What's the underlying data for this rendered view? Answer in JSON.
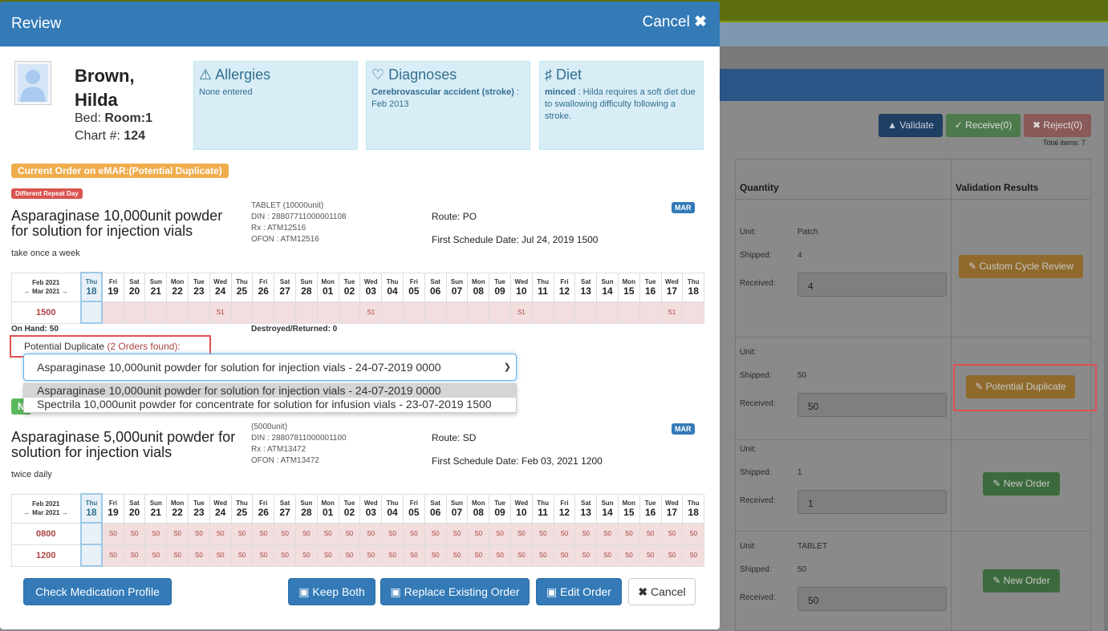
{
  "background": {
    "buttons": {
      "validate": "Validate",
      "receive": "Receive(0)",
      "reject": "Reject(0)"
    },
    "total_items": "Total items: 7",
    "columns": {
      "quantity": "Quantity",
      "validation": "Validation Results"
    },
    "labels": {
      "unit": "Unit:",
      "shipped": "Shipped:",
      "received": "Received:"
    },
    "rows": [
      {
        "unit": "Patch",
        "shipped": "4",
        "received": "4",
        "result": "Custom Cycle Review"
      },
      {
        "unit": "",
        "shipped": "50",
        "received": "50",
        "result": "Potential Duplicate"
      },
      {
        "unit": "",
        "shipped": "1",
        "received": "1",
        "result": "New Order"
      },
      {
        "unit": "TABLET",
        "shipped": "50",
        "received": "50",
        "result": "New Order"
      }
    ]
  },
  "modal": {
    "title": "Review",
    "cancel_label": "Cancel",
    "patient": {
      "name_line1": "Brown,",
      "name_line2": "Hilda",
      "bed_label": "Bed: ",
      "bed_value": "Room:1",
      "chart_label": "Chart #: ",
      "chart_value": "124"
    },
    "allergies": {
      "title": "Allergies",
      "text": "None entered"
    },
    "diagnoses": {
      "title": "Diagnoses",
      "bold": "Cerebrovascular accident (stroke)",
      "text": " : Feb 2013"
    },
    "diet": {
      "title": "Diet",
      "bold": "minced",
      "text": " : Hilda requires a soft diet due to swallowing difficulty following a stroke."
    },
    "current_badge": "Current Order on eMAR:(Potential Duplicate)",
    "repeat_badge": "Different Repeat Day",
    "order1": {
      "drug_name": "Asparaginase 10,000unit powder for solution for injection vials",
      "form": "TABLET (10000unit)",
      "din": "DIN : 28807711000001108",
      "rx": "Rx : ATM12516",
      "ofon": "OFON : ATM12516",
      "route": "Route: PO",
      "first_schedule": "First Schedule Date: Jul 24, 2019 1500",
      "instruction": "take once a week",
      "mar": "MAR",
      "times": [
        {
          "time": "1500",
          "cells": [
            "",
            "",
            "",
            "",
            "",
            "",
            "S1",
            "",
            "",
            "",
            "",
            "",
            "",
            "S1",
            "",
            "",
            "",
            "",
            "",
            "",
            "S1",
            "",
            "",
            "",
            "",
            "",
            "",
            "S1",
            ""
          ]
        }
      ]
    },
    "on_hand": "On Hand: 50",
    "destroyed": "Destroyed/Returned: 0",
    "potential_duplicate_label": "Potential Duplicate ",
    "orders_found": "(2 Orders found):",
    "select_value": "Asparaginase 10,000unit powder for solution for injection vials - 24-07-2019 0000",
    "options": [
      "Asparaginase 10,000unit powder for solution for injection vials - 24-07-2019 0000",
      "Spectrila 10,000unit powder for concentrate for solution for infusion vials - 23-07-2019 1500"
    ],
    "new_badge": "N",
    "order2": {
      "drug_name": "Asparaginase 5,000unit powder for solution for injection vials",
      "form": "(5000unit)",
      "din": "DIN : 28807811000001100",
      "rx": "Rx : ATM13472",
      "ofon": "OFON : ATM13472",
      "route": "Route: SD",
      "first_schedule": "First Schedule Date: Feb 03, 2021 1200",
      "instruction": "twice daily",
      "mar": "MAR",
      "times": [
        {
          "time": "0800",
          "cells": [
            "",
            "S0",
            "S0",
            "S0",
            "S0",
            "S0",
            "S0",
            "S0",
            "S0",
            "S0",
            "S0",
            "S0",
            "S0",
            "S0",
            "S0",
            "S0",
            "S0",
            "S0",
            "S0",
            "S0",
            "S0",
            "S0",
            "S0",
            "S0",
            "S0",
            "S0",
            "S0",
            "S0",
            "S0"
          ]
        },
        {
          "time": "1200",
          "cells": [
            "",
            "S0",
            "S0",
            "S0",
            "S0",
            "S0",
            "S0",
            "S0",
            "S0",
            "S0",
            "S0",
            "S0",
            "S0",
            "S0",
            "S0",
            "S0",
            "S0",
            "S0",
            "S0",
            "S0",
            "S0",
            "S0",
            "S0",
            "S0",
            "S0",
            "S0",
            "S0",
            "S0",
            "S0"
          ]
        }
      ]
    },
    "calendar": {
      "month1": "Feb 2021",
      "month2": "Mar 2021",
      "days": [
        {
          "n": "Thu",
          "d": "18"
        },
        {
          "n": "Fri",
          "d": "19"
        },
        {
          "n": "Sat",
          "d": "20"
        },
        {
          "n": "Sun",
          "d": "21"
        },
        {
          "n": "Mon",
          "d": "22"
        },
        {
          "n": "Tue",
          "d": "23"
        },
        {
          "n": "Wed",
          "d": "24"
        },
        {
          "n": "Thu",
          "d": "25"
        },
        {
          "n": "Fri",
          "d": "26"
        },
        {
          "n": "Sat",
          "d": "27"
        },
        {
          "n": "Sun",
          "d": "28"
        },
        {
          "n": "Mon",
          "d": "01"
        },
        {
          "n": "Tue",
          "d": "02"
        },
        {
          "n": "Wed",
          "d": "03"
        },
        {
          "n": "Thu",
          "d": "04"
        },
        {
          "n": "Fri",
          "d": "05"
        },
        {
          "n": "Sat",
          "d": "06"
        },
        {
          "n": "Sun",
          "d": "07"
        },
        {
          "n": "Mon",
          "d": "08"
        },
        {
          "n": "Tue",
          "d": "09"
        },
        {
          "n": "Wed",
          "d": "10"
        },
        {
          "n": "Thu",
          "d": "11"
        },
        {
          "n": "Fri",
          "d": "12"
        },
        {
          "n": "Sat",
          "d": "13"
        },
        {
          "n": "Sun",
          "d": "14"
        },
        {
          "n": "Mon",
          "d": "15"
        },
        {
          "n": "Tue",
          "d": "16"
        },
        {
          "n": "Wed",
          "d": "17"
        },
        {
          "n": "Thu",
          "d": "18"
        }
      ]
    },
    "footer": {
      "check_profile": "Check Medication Profile",
      "keep_both": "Keep Both",
      "replace": "Replace Existing Order",
      "edit": "Edit Order",
      "cancel": "Cancel"
    }
  }
}
